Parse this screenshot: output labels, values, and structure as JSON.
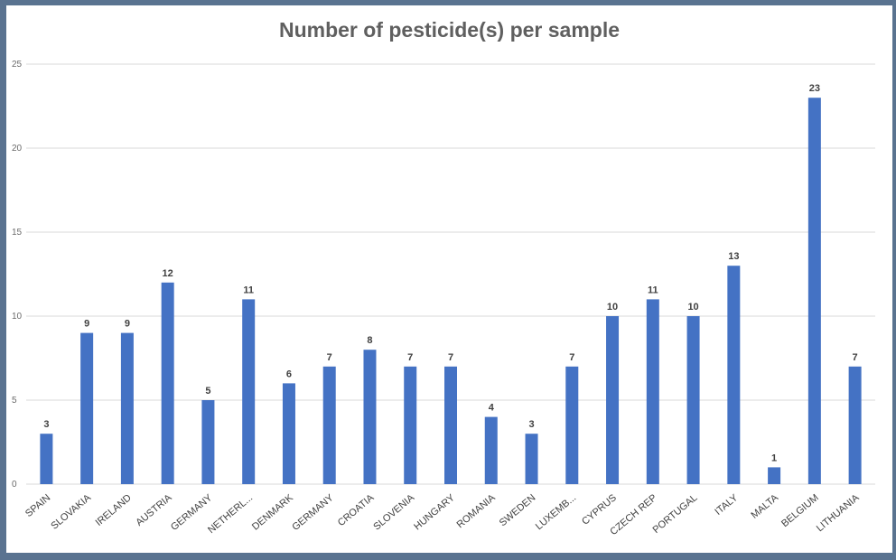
{
  "chart_data": {
    "type": "bar",
    "title": "Number of pesticide(s) per sample",
    "xlabel": "",
    "ylabel": "",
    "ylim": [
      0,
      25
    ],
    "yticks": [
      0,
      5,
      10,
      15,
      20,
      25
    ],
    "grid": true,
    "bar_color": "#4472c4",
    "categories": [
      "SPAIN",
      "SLOVAKIA",
      "IRELAND",
      "AUSTRIA",
      "GERMANY",
      "NETHERL...",
      "DENMARK",
      "GERMANY",
      "CROATIA",
      "SLOVENIA",
      "HUNGARY",
      "ROMANIA",
      "SWEDEN",
      "LUXEMB...",
      "CYPRUS",
      "CZECH REP",
      "PORTUGAL",
      "ITALY",
      "MALTA",
      "BELGIUM",
      "LITHUANIA"
    ],
    "values": [
      3,
      9,
      9,
      12,
      5,
      11,
      6,
      7,
      8,
      7,
      7,
      4,
      3,
      7,
      10,
      11,
      10,
      13,
      1,
      23,
      7
    ]
  }
}
